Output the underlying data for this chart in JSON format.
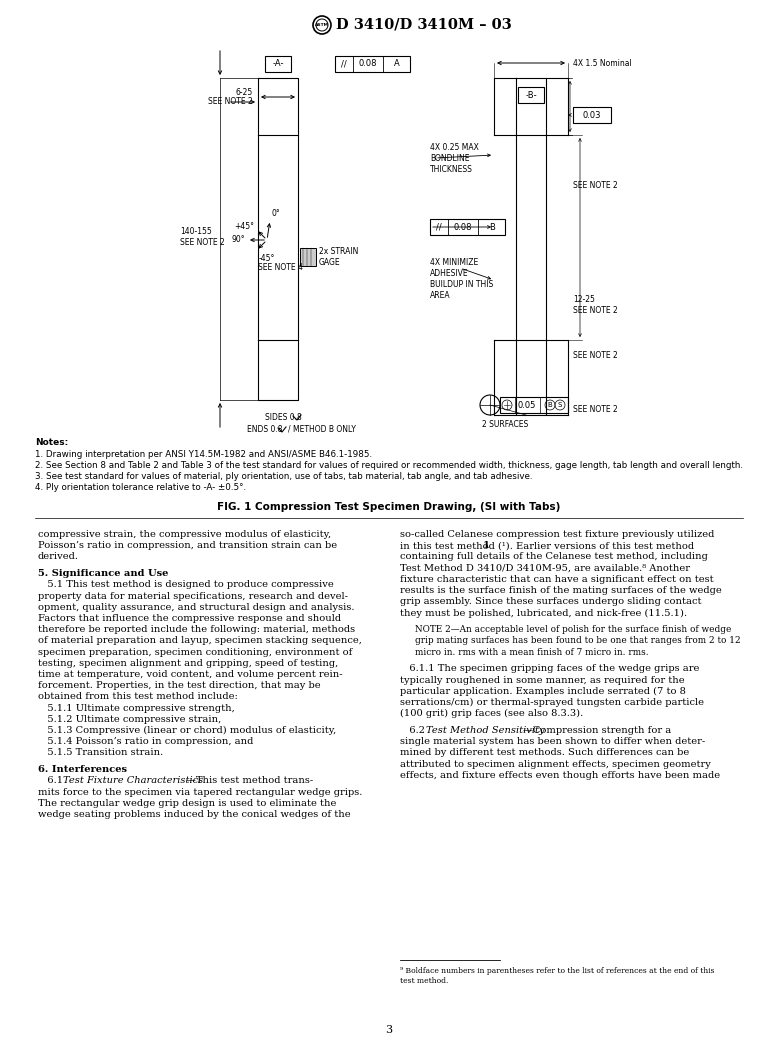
{
  "title": "D 3410/D 3410M – 03",
  "fig_caption": "FIG. 1 Compression Test Specimen Drawing, (SI with Tabs)",
  "page_number": "3",
  "background_color": "#ffffff",
  "text_color": "#000000"
}
